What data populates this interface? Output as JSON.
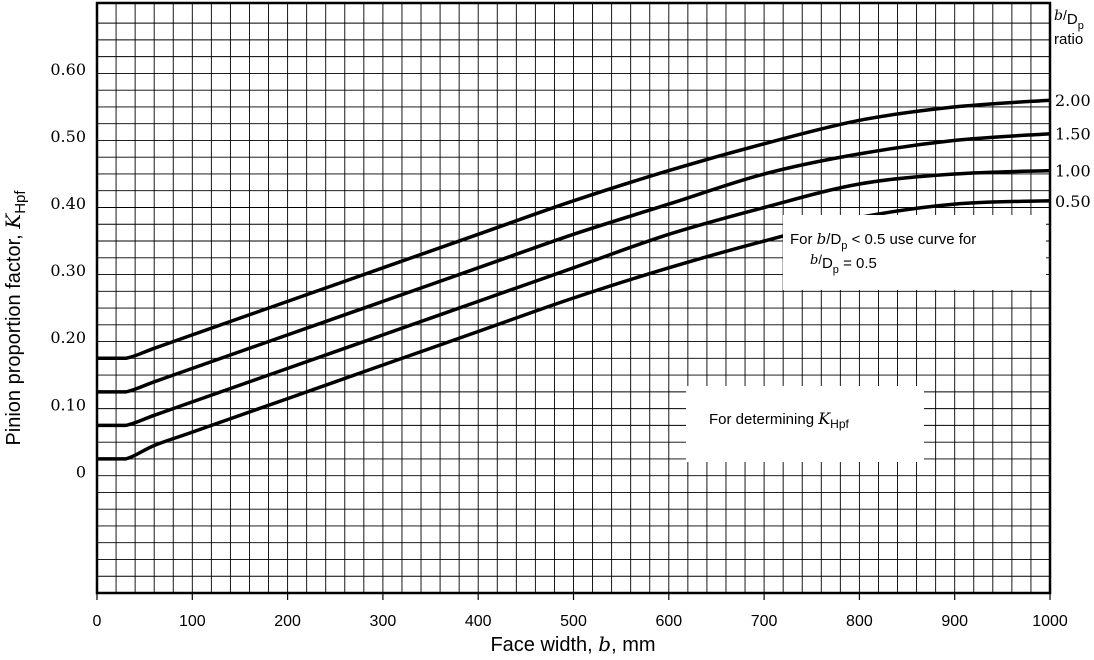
{
  "chart_data": {
    "type": "line",
    "title": "",
    "xlabel": {
      "prefix": "Face width, ",
      "symbol": "b",
      "suffix": ", mm"
    },
    "ylabel": {
      "prefix": "Pinion proportion factor, ",
      "symbol": "K",
      "subscript": "Hpf"
    },
    "xlim": [
      0,
      1000
    ],
    "ylim": [
      -0.18,
      0.7
    ],
    "grid": true,
    "x_ticks": [
      0,
      100,
      200,
      300,
      400,
      500,
      600,
      700,
      800,
      900,
      1000
    ],
    "x_tick_labels": [
      "0",
      "100",
      "200",
      "300",
      "400",
      "500",
      "600",
      "700",
      "800",
      "900",
      "1000"
    ],
    "y_ticks": [
      0,
      0.1,
      0.2,
      0.3,
      0.4,
      0.5,
      0.6
    ],
    "y_tick_labels": [
      "0",
      "0.10",
      "0.20",
      "0.30",
      "0.40",
      "0.50",
      "0.60"
    ],
    "legend_header": {
      "b": "b",
      "slash": "/",
      "D": "D",
      "sub": "p",
      "ratio": "ratio"
    },
    "series": [
      {
        "name": "2.00",
        "x": [
          0,
          30,
          60,
          100,
          200,
          300,
          400,
          500,
          600,
          700,
          800,
          900,
          1000
        ],
        "y": [
          0.17,
          0.17,
          0.185,
          0.205,
          0.255,
          0.305,
          0.355,
          0.405,
          0.45,
          0.49,
          0.525,
          0.545,
          0.555
        ]
      },
      {
        "name": "1.50",
        "x": [
          0,
          30,
          60,
          100,
          200,
          300,
          400,
          500,
          600,
          700,
          800,
          900,
          1000
        ],
        "y": [
          0.12,
          0.12,
          0.135,
          0.155,
          0.205,
          0.255,
          0.305,
          0.355,
          0.4,
          0.445,
          0.475,
          0.495,
          0.505
        ]
      },
      {
        "name": "1.00",
        "x": [
          0,
          30,
          60,
          100,
          200,
          300,
          400,
          500,
          600,
          700,
          800,
          900,
          1000
        ],
        "y": [
          0.07,
          0.07,
          0.085,
          0.105,
          0.155,
          0.205,
          0.255,
          0.305,
          0.355,
          0.395,
          0.43,
          0.445,
          0.45
        ]
      },
      {
        "name": "0.50",
        "x": [
          0,
          30,
          60,
          100,
          200,
          300,
          400,
          500,
          600,
          700,
          800,
          900,
          1000
        ],
        "y": [
          0.02,
          0.02,
          0.04,
          0.06,
          0.11,
          0.16,
          0.21,
          0.26,
          0.305,
          0.345,
          0.38,
          0.4,
          0.405
        ]
      }
    ],
    "annotations": [
      {
        "id": "min-ratio-note",
        "line1": {
          "pre": "For ",
          "b": "b",
          "slash": "/",
          "D": "D",
          "sub": "p",
          "post": " < 0.5 use curve for"
        },
        "line2": {
          "b": "b",
          "slash": "/",
          "D": "D",
          "sub": "p",
          "post": " = 0.5"
        }
      },
      {
        "id": "determining-note",
        "text": "For determining ",
        "symbol": "K",
        "subscript": "Hpf"
      }
    ]
  }
}
